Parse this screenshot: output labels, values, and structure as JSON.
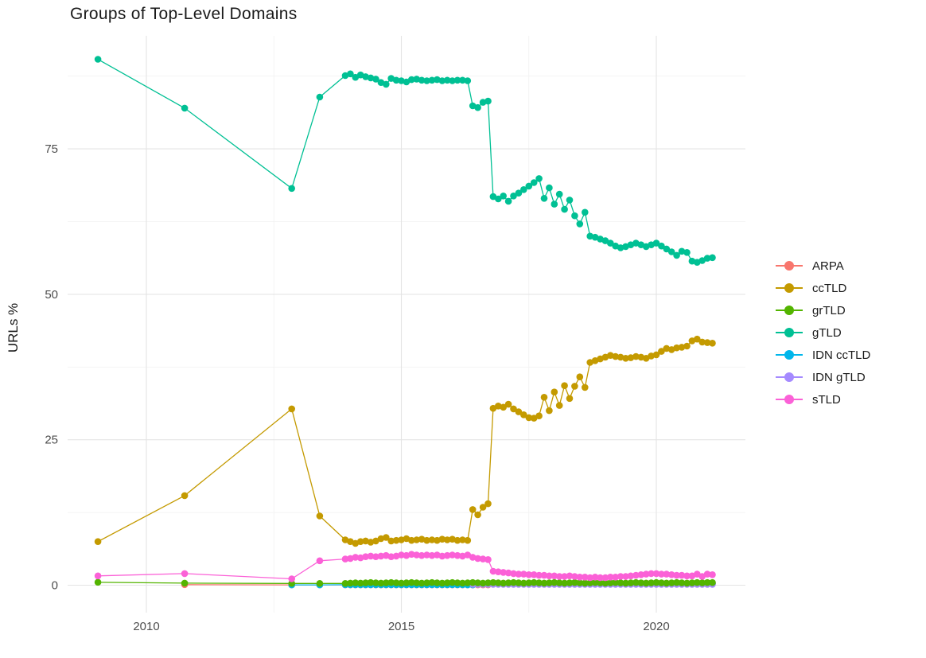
{
  "title": "Groups of Top-Level Domains",
  "axes": {
    "y_label": "URLs %",
    "y_tick_labels": [
      "0",
      "25",
      "50",
      "75"
    ],
    "x_tick_labels": [
      "2010",
      "2015",
      "2020"
    ]
  },
  "style": {
    "background": "#ffffff",
    "grid_major_color": "#e4e4e4",
    "grid_minor_color": "#f2f2f2",
    "tick_label_color": "#4d4d4d",
    "title_color": "#1a1a1a"
  },
  "chart_data": {
    "type": "line",
    "title": "Groups of Top-Level Domains",
    "xlabel": "",
    "ylabel": "URLs %",
    "grid": true,
    "legend_position": "right",
    "marker": "circle",
    "x_ticks": [
      2010,
      2015,
      2020
    ],
    "y_ticks": [
      0,
      25,
      50,
      75
    ],
    "x_minor_ticks": [
      2012.5,
      2017.5
    ],
    "y_minor_ticks": [
      12.5,
      37.5,
      62.5,
      87.5
    ],
    "xlim": [
      2008.45,
      2021.75
    ],
    "ylim": [
      -4.6,
      94.5
    ],
    "dense_x_start": 2013.9,
    "dense_x_step": 0.1,
    "draw_order": [
      "ARPA",
      "IDN ccTLD",
      "IDN gTLD",
      "ccTLD",
      "grTLD",
      "gTLD",
      "sTLD"
    ],
    "series": [
      {
        "name": "ARPA",
        "color": "#F8766D",
        "sparse": [
          [
            2010.75,
            0.1
          ],
          [
            2012.85,
            0.05
          ],
          [
            2013.4,
            0.05
          ]
        ],
        "dense_y": [
          0.05,
          0.05,
          0.05,
          0.05,
          0.05,
          0.05,
          0.05,
          0.05,
          0.05,
          0.05,
          0.05,
          0.05,
          0.05,
          0.05,
          0.05,
          0.05,
          0.05,
          0.05,
          0.05,
          0.05,
          0.05,
          0.05,
          0.05,
          0.05,
          0.05,
          0.05,
          0.05,
          0.05,
          0.05,
          0.35,
          0.35,
          0.35,
          0.35,
          0.35,
          0.35,
          0.35,
          0.35,
          0.35,
          0.35,
          0.35,
          0.35,
          0.35,
          0.35,
          0.35,
          0.35,
          0.35,
          0.35,
          0.35,
          0.35,
          0.35,
          0.35,
          0.35,
          0.35,
          0.35,
          0.35,
          0.35,
          0.35,
          0.35,
          0.35,
          0.35,
          0.35,
          0.35,
          0.35,
          0.35,
          0.35,
          0.35,
          0.35,
          0.35,
          0.35,
          0.35,
          0.35,
          0.35,
          0.35
        ]
      },
      {
        "name": "ccTLD",
        "color": "#C49A00",
        "sparse": [
          [
            2009.05,
            7.5
          ],
          [
            2010.75,
            15.4
          ],
          [
            2012.85,
            30.3
          ],
          [
            2013.4,
            11.9
          ]
        ],
        "dense_y": [
          7.8,
          7.5,
          7.2,
          7.5,
          7.6,
          7.4,
          7.6,
          8.0,
          8.2,
          7.6,
          7.7,
          7.8,
          8.0,
          7.7,
          7.8,
          7.9,
          7.7,
          7.8,
          7.7,
          7.9,
          7.8,
          7.9,
          7.7,
          7.8,
          7.7,
          13.0,
          12.1,
          13.4,
          14.0,
          30.4,
          30.8,
          30.6,
          31.1,
          30.3,
          29.8,
          29.3,
          28.8,
          28.7,
          29.1,
          32.3,
          30.0,
          33.2,
          30.9,
          34.3,
          32.1,
          34.2,
          35.8,
          34.0,
          38.3,
          38.6,
          38.9,
          39.2,
          39.5,
          39.3,
          39.2,
          39.0,
          39.1,
          39.3,
          39.2,
          39.0,
          39.4,
          39.6,
          40.2,
          40.7,
          40.5,
          40.8,
          40.9,
          41.1,
          42.0,
          42.3,
          41.8,
          41.7,
          41.6
        ]
      },
      {
        "name": "grTLD",
        "color": "#53B400",
        "sparse": [
          [
            2009.05,
            0.5
          ],
          [
            2010.75,
            0.35
          ],
          [
            2012.85,
            0.3
          ],
          [
            2013.4,
            0.3
          ]
        ],
        "dense_y": [
          0.3,
          0.35,
          0.4,
          0.35,
          0.4,
          0.45,
          0.4,
          0.35,
          0.4,
          0.45,
          0.4,
          0.35,
          0.4,
          0.45,
          0.4,
          0.35,
          0.4,
          0.45,
          0.4,
          0.35,
          0.4,
          0.45,
          0.4,
          0.35,
          0.4,
          0.45,
          0.4,
          0.35,
          0.4,
          0.45,
          0.4,
          0.35,
          0.4,
          0.45,
          0.4,
          0.35,
          0.4,
          0.45,
          0.4,
          0.35,
          0.4,
          0.45,
          0.4,
          0.35,
          0.4,
          0.45,
          0.4,
          0.35,
          0.4,
          0.45,
          0.4,
          0.35,
          0.4,
          0.45,
          0.4,
          0.35,
          0.4,
          0.45,
          0.4,
          0.35,
          0.4,
          0.45,
          0.4,
          0.35,
          0.4,
          0.45,
          0.4,
          0.35,
          0.4,
          0.45,
          0.4,
          0.45,
          0.45
        ]
      },
      {
        "name": "gTLD",
        "color": "#00C094",
        "sparse": [
          [
            2009.05,
            90.4
          ],
          [
            2010.75,
            82.0
          ],
          [
            2012.85,
            68.2
          ],
          [
            2013.4,
            83.9
          ]
        ],
        "dense_y": [
          87.6,
          87.9,
          87.3,
          87.7,
          87.4,
          87.2,
          87.0,
          86.4,
          86.1,
          87.1,
          86.8,
          86.7,
          86.5,
          86.9,
          87.0,
          86.8,
          86.7,
          86.8,
          86.9,
          86.7,
          86.8,
          86.7,
          86.8,
          86.8,
          86.7,
          82.4,
          82.1,
          83.0,
          83.2,
          66.8,
          66.4,
          66.9,
          66.0,
          66.9,
          67.4,
          68.0,
          68.6,
          69.2,
          69.9,
          66.5,
          68.3,
          65.5,
          67.2,
          64.6,
          66.2,
          63.5,
          62.1,
          64.1,
          60.0,
          59.8,
          59.5,
          59.2,
          58.8,
          58.3,
          58.0,
          58.2,
          58.5,
          58.8,
          58.5,
          58.2,
          58.5,
          58.8,
          58.3,
          57.8,
          57.3,
          56.7,
          57.4,
          57.2,
          55.7,
          55.5,
          55.8,
          56.2,
          56.3
        ]
      },
      {
        "name": "IDN ccTLD",
        "color": "#00B6EB",
        "sparse": [
          [
            2012.85,
            0.05
          ],
          [
            2013.4,
            0.05
          ]
        ],
        "dense_y": [
          0.08,
          0.08,
          0.08,
          0.08,
          0.08,
          0.08,
          0.08,
          0.08,
          0.08,
          0.08,
          0.08,
          0.08,
          0.08,
          0.08,
          0.08,
          0.08,
          0.08,
          0.08,
          0.08,
          0.08,
          0.08,
          0.08,
          0.08,
          0.08,
          0.05,
          0.05,
          0.25,
          0.25,
          0.25,
          0.25,
          0.25,
          0.25,
          0.25,
          0.25,
          0.25,
          0.25,
          0.25,
          0.25,
          0.25,
          0.25,
          0.25,
          0.25,
          0.25,
          0.25,
          0.25,
          0.25,
          0.25,
          0.25,
          0.25,
          0.25,
          0.25,
          0.25,
          0.25,
          0.25,
          0.25,
          0.25,
          0.25,
          0.25,
          0.25,
          0.25,
          0.25,
          0.25,
          0.25,
          0.25,
          0.25,
          0.25,
          0.25,
          0.25,
          0.25,
          0.25,
          0.25,
          0.25,
          0.25
        ]
      },
      {
        "name": "IDN gTLD",
        "color": "#A58AFF",
        "sparse": [],
        "dense_y": [
          null,
          null,
          null,
          null,
          null,
          null,
          null,
          null,
          null,
          null,
          null,
          null,
          null,
          null,
          null,
          null,
          null,
          null,
          null,
          null,
          null,
          null,
          null,
          null,
          null,
          0.15,
          0.15,
          0.15,
          0.15,
          0.15,
          0.15,
          0.15,
          0.15,
          0.15,
          0.15,
          0.15,
          0.15,
          0.15,
          0.15,
          0.15,
          0.15,
          0.15,
          0.15,
          0.15,
          0.15,
          0.15,
          0.15,
          0.15,
          0.15,
          0.15,
          0.15,
          0.15,
          0.15,
          0.15,
          0.15,
          0.15,
          0.15,
          0.15,
          0.15,
          0.15,
          0.15,
          0.15,
          0.15,
          0.15,
          0.15,
          0.15,
          0.15,
          0.15,
          0.15,
          0.15,
          0.15,
          0.15,
          0.15
        ]
      },
      {
        "name": "sTLD",
        "color": "#FB61D7",
        "sparse": [
          [
            2009.05,
            1.6
          ],
          [
            2010.75,
            2.0
          ],
          [
            2012.85,
            1.1
          ],
          [
            2013.4,
            4.2
          ]
        ],
        "dense_y": [
          4.5,
          4.6,
          4.8,
          4.7,
          4.9,
          5.0,
          4.9,
          5.0,
          5.1,
          4.9,
          5.0,
          5.2,
          5.1,
          5.3,
          5.2,
          5.1,
          5.2,
          5.1,
          5.2,
          5.0,
          5.1,
          5.2,
          5.1,
          5.0,
          5.2,
          4.8,
          4.6,
          4.5,
          4.4,
          2.4,
          2.3,
          2.2,
          2.1,
          2.0,
          1.9,
          1.9,
          1.8,
          1.8,
          1.7,
          1.7,
          1.6,
          1.6,
          1.5,
          1.5,
          1.6,
          1.5,
          1.4,
          1.4,
          1.3,
          1.4,
          1.3,
          1.3,
          1.4,
          1.4,
          1.5,
          1.5,
          1.6,
          1.7,
          1.8,
          1.9,
          2.0,
          2.0,
          1.9,
          1.9,
          1.8,
          1.7,
          1.7,
          1.6,
          1.6,
          1.9,
          1.5,
          1.9,
          1.8
        ]
      }
    ]
  }
}
